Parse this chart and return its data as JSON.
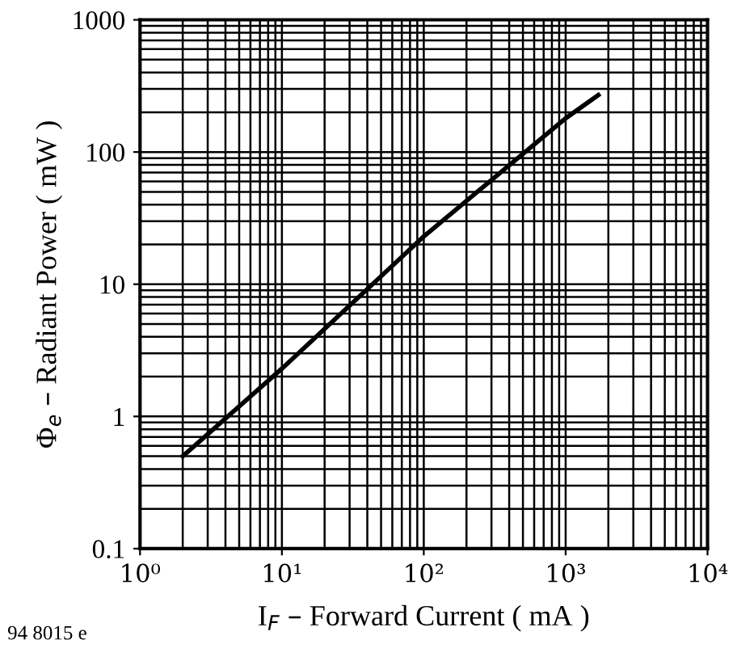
{
  "chart_data": {
    "type": "line",
    "xlabel": "I$_{F}$ – Forward Current ( mA )",
    "ylabel": "Φ$_{e}$ – Radiant Power ( mW )",
    "x": [
      2,
      10,
      100,
      1000,
      1700
    ],
    "values": [
      0.5,
      2.3,
      23,
      180,
      270
    ],
    "color": "#000000",
    "log": "xy",
    "grid": true,
    "marker": "none",
    "line_style": "solid",
    "xlim": [
      1,
      10000
    ],
    "ylim": [
      0.1,
      1000
    ],
    "xticks": [
      {
        "value": 1,
        "label": "10⁰"
      },
      {
        "value": 10,
        "label": "10¹"
      },
      {
        "value": 100,
        "label": "10²"
      },
      {
        "value": 1000,
        "label": "10³"
      },
      {
        "value": 10000,
        "label": "10⁴"
      }
    ],
    "yticks": [
      0.1,
      1,
      10,
      100,
      1000
    ],
    "annotations": [
      "94 8015 e"
    ]
  }
}
